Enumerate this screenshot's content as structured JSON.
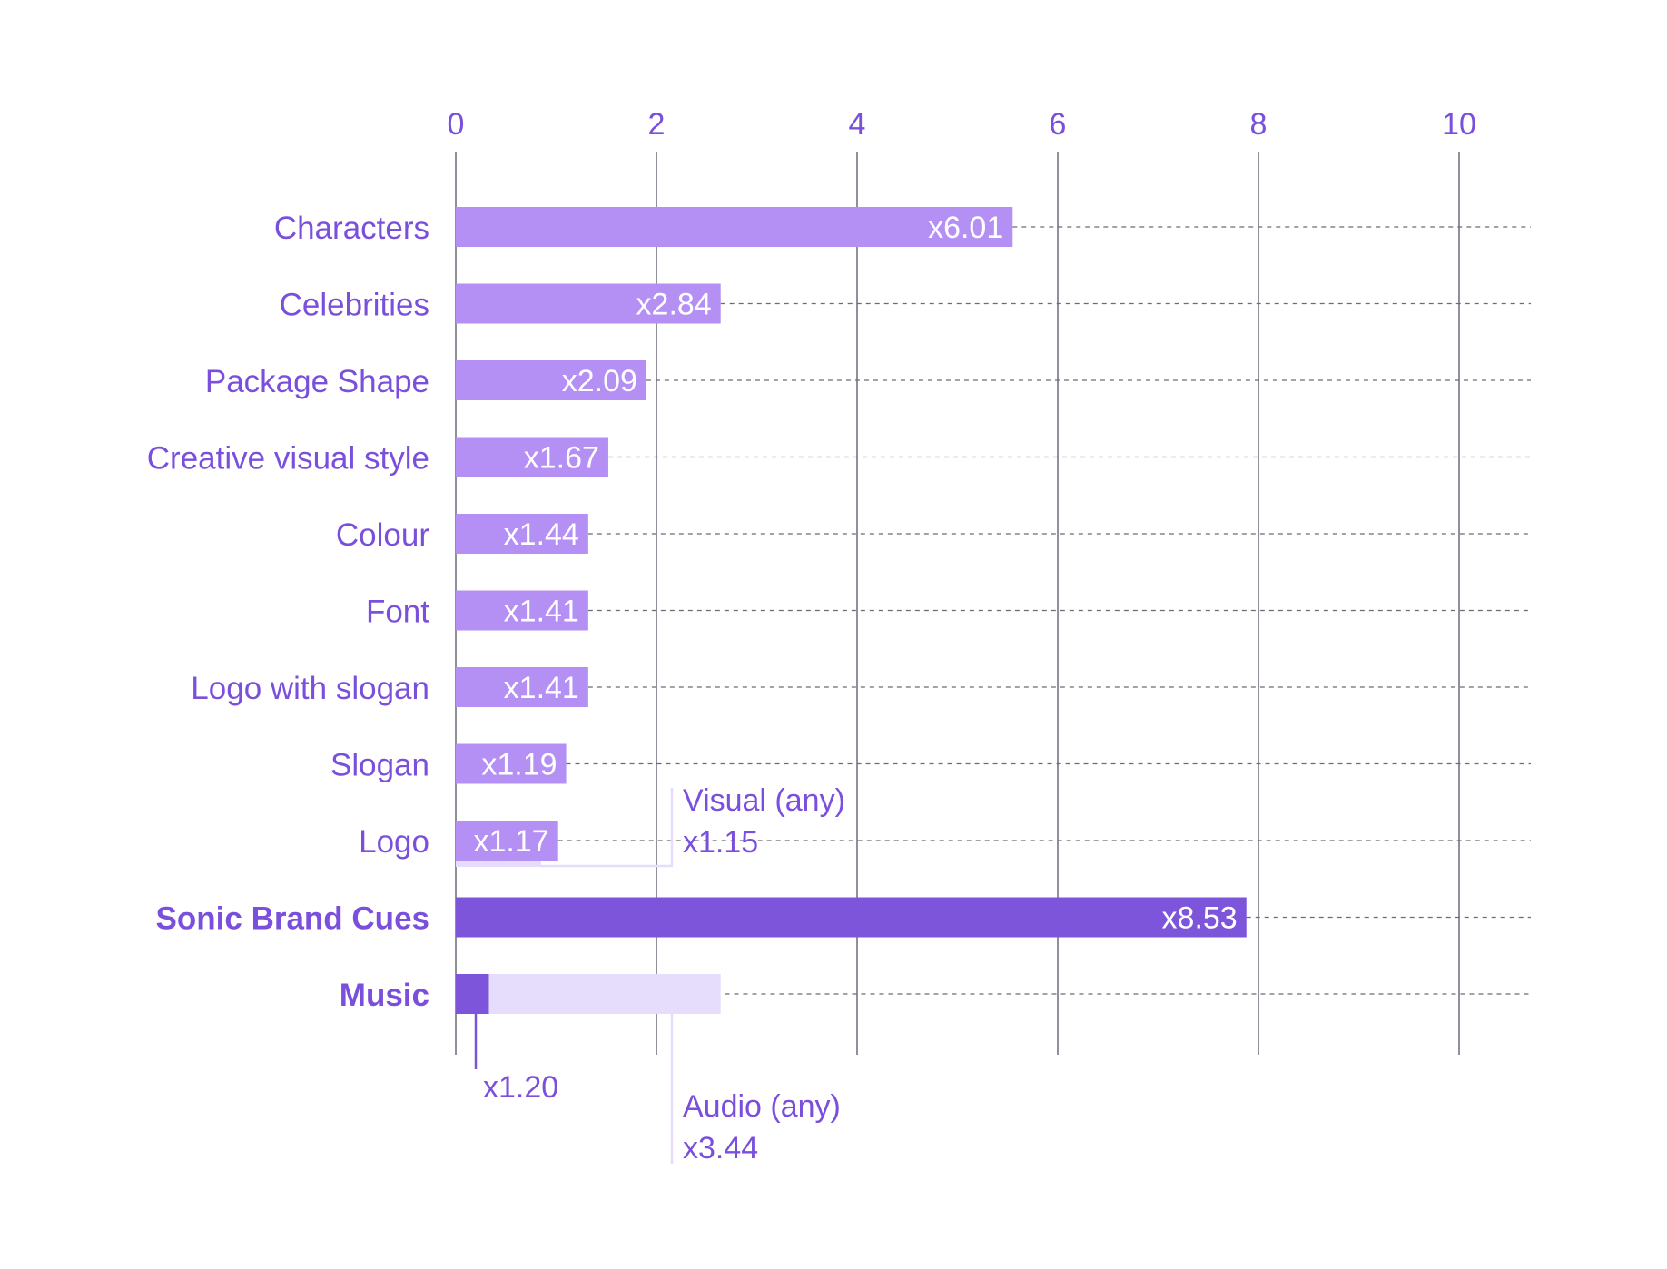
{
  "chart_data": {
    "type": "bar",
    "orientation": "horizontal",
    "xlim": [
      0,
      10
    ],
    "x_ticks": [
      "0",
      "2",
      "4",
      "6",
      "8",
      "10"
    ],
    "x_tick_values": [
      0,
      2,
      4,
      6,
      8,
      10
    ],
    "bars": [
      {
        "category": "Characters",
        "value": 5.55,
        "label": "x6.01",
        "group": "visual"
      },
      {
        "category": "Celebrities",
        "value": 2.64,
        "label": "x2.84",
        "group": "visual"
      },
      {
        "category": "Package Shape",
        "value": 1.9,
        "label": "x2.09",
        "group": "visual"
      },
      {
        "category": "Creative visual style",
        "value": 1.52,
        "label": "x1.67",
        "group": "visual"
      },
      {
        "category": "Colour",
        "value": 1.32,
        "label": "x1.44",
        "group": "visual"
      },
      {
        "category": "Font",
        "value": 1.32,
        "label": "x1.41",
        "group": "visual"
      },
      {
        "category": "Logo with slogan",
        "value": 1.32,
        "label": "x1.41",
        "group": "visual"
      },
      {
        "category": "Slogan",
        "value": 1.1,
        "label": "x1.19",
        "group": "visual"
      },
      {
        "category": "Logo",
        "value": 1.02,
        "label": "x1.17",
        "group": "visual"
      },
      {
        "category": "Sonic Brand Cues",
        "value": 7.88,
        "label": "x8.53",
        "group": "audio",
        "bold": true
      },
      {
        "category": "Music",
        "value": 0.33,
        "label": "",
        "group": "audio",
        "bold": true
      }
    ],
    "overlays": [
      {
        "category": "Logo",
        "name": "Visual (any)",
        "label": "x1.15",
        "value": 0.85
      },
      {
        "category": "Music",
        "name": "Audio (any)",
        "label": "x3.44",
        "value": 2.64
      }
    ],
    "music_label": "x1.20",
    "colors": {
      "visual": "#b490f5",
      "audio": "#7d55db",
      "overlay": "#e6dcfb",
      "text": "#7a4fdc",
      "axis": "#6b6b78",
      "grid_dashed": "#6b6b78"
    },
    "grid": true,
    "title": "",
    "xlabel": "",
    "ylabel": ""
  }
}
